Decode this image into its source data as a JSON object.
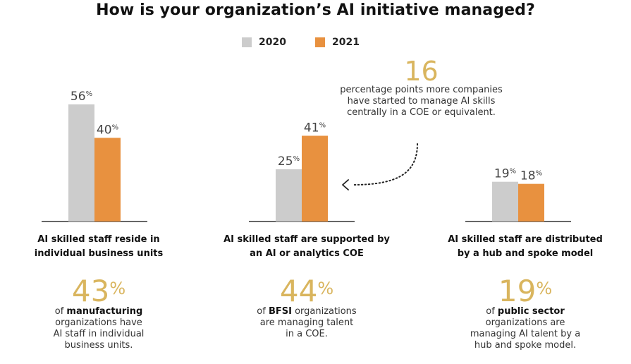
{
  "colors": {
    "c2020": "#cccccc",
    "c2021": "#e8913f",
    "gold": "#d9b55e",
    "baseline": "#333333"
  },
  "title": "How is your organization’s AI initiative managed?",
  "legend": [
    {
      "label": "2020",
      "color": "#cccccc"
    },
    {
      "label": "2021",
      "color": "#e8913f"
    }
  ],
  "callout": {
    "number": "16",
    "text": "percentage points more companies have started to manage AI skills centrally in a COE or equivalent."
  },
  "chart_data": {
    "type": "bar",
    "title": "How is your organization’s AI initiative managed?",
    "categories": [
      "AI skilled staff reside in individual business units",
      "AI skilled staff are supported by an AI or analytics COE",
      "AI skilled staff are distributed by a hub and spoke model"
    ],
    "series": [
      {
        "name": "2020",
        "values": [
          56,
          25,
          19
        ]
      },
      {
        "name": "2021",
        "values": [
          40,
          41,
          18
        ]
      }
    ],
    "unit": "%",
    "ylim": [
      0,
      56
    ]
  },
  "groups": [
    {
      "label_lines": [
        "AI skilled staff reside in",
        "individual business units"
      ],
      "stat_number": "43",
      "stat_percent": "%",
      "stat_prefix": "of ",
      "stat_bold": "manufacturing",
      "stat_lines": [
        "organizations have",
        "AI staff in individual",
        "business units."
      ]
    },
    {
      "label_lines": [
        "AI skilled staff are supported by",
        "an AI or analytics COE"
      ],
      "stat_number": "44",
      "stat_percent": "%",
      "stat_prefix": "of ",
      "stat_bold": "BFSI",
      "stat_suffix": " organizations",
      "stat_lines": [
        "are managing talent",
        "in a COE."
      ]
    },
    {
      "label_lines": [
        "AI skilled staff are distributed",
        "by a hub and spoke model"
      ],
      "stat_number": "19",
      "stat_percent": "%",
      "stat_prefix": "of ",
      "stat_bold": "public sector",
      "stat_lines": [
        "organizations are",
        "managing AI talent by a",
        "hub and spoke model."
      ]
    }
  ]
}
